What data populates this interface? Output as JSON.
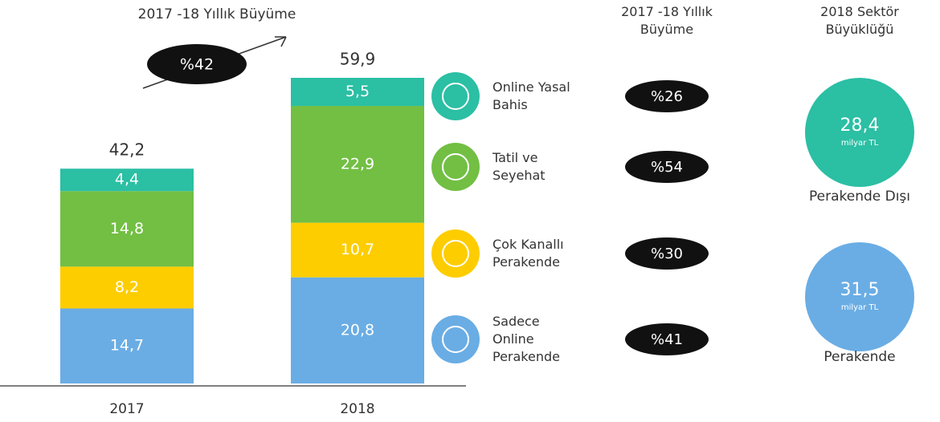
{
  "chart_data": {
    "type": "bar",
    "stacked": true,
    "categories": [
      "2017",
      "2018"
    ],
    "series": [
      {
        "name": "Sadece Online Perakende",
        "color": "#6aade4",
        "values": [
          14.7,
          20.8
        ],
        "value_labels": [
          "14,7",
          "20,8"
        ],
        "growth_label": "%41"
      },
      {
        "name": "Çok Kanallı Perakende",
        "color": "#fdcd00",
        "values": [
          8.2,
          10.7
        ],
        "value_labels": [
          "8,2",
          "10,7"
        ],
        "growth_label": "%30"
      },
      {
        "name": "Tatil ve Seyehat",
        "color": "#72bf44",
        "values": [
          14.8,
          22.9
        ],
        "value_labels": [
          "14,8",
          "22,9"
        ],
        "growth_label": "%54"
      },
      {
        "name": "Online Yasal Bahis",
        "color": "#2bbfa4",
        "values": [
          4.4,
          5.5
        ],
        "value_labels": [
          "4,4",
          "5,5"
        ],
        "growth_label": "%26"
      }
    ],
    "totals": [
      42.2,
      59.9
    ],
    "total_labels": [
      "42,2",
      "59,9"
    ],
    "annotation": {
      "title": "2017 -18 Yıllık Büyüme",
      "label": "%42"
    },
    "growth_header": "2017 -18 Yıllık Büyüme",
    "sector": {
      "title": "2018 Sektör Büyüklüğü",
      "items": [
        {
          "name": "Perakende Dışı",
          "value": 28.4,
          "label": "28,4",
          "unit": "milyar TL",
          "color": "#2bbfa4"
        },
        {
          "name": "Perakende",
          "value": 31.5,
          "label": "31,5",
          "unit": "milyar TL",
          "color": "#6aade4"
        }
      ]
    }
  }
}
